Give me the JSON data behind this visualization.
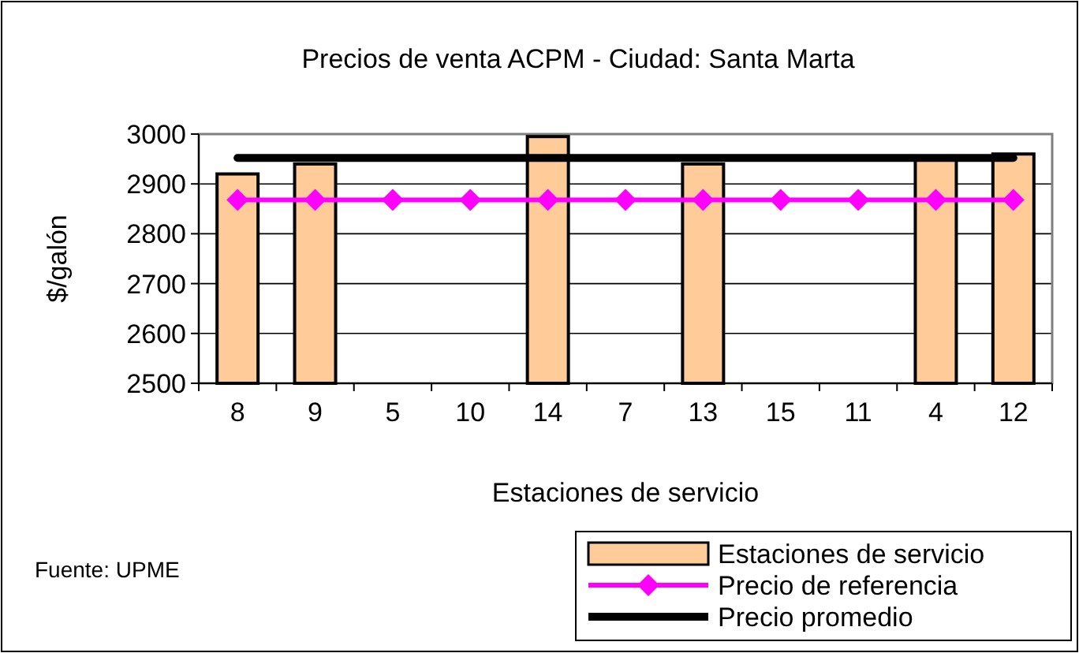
{
  "chart_data": {
    "type": "bar",
    "title": "Precios de venta ACPM - Ciudad: Santa Marta",
    "xlabel": "Estaciones de servicio",
    "ylabel": "$/galón",
    "categories": [
      "8",
      "9",
      "5",
      "10",
      "14",
      "7",
      "13",
      "15",
      "11",
      "4",
      "12"
    ],
    "series": [
      {
        "name": "Estaciones de servicio",
        "color": "#ffcc99",
        "values": [
          2920,
          2940,
          null,
          null,
          2995,
          null,
          2940,
          null,
          null,
          2955,
          2960
        ]
      },
      {
        "name": "Precio de referencia",
        "type": "line",
        "color": "#ff00ff",
        "marker": "diamond",
        "values": [
          2868,
          2868,
          2868,
          2868,
          2868,
          2868,
          2868,
          2868,
          2868,
          2868,
          2868
        ]
      },
      {
        "name": "Precio promedio",
        "type": "line",
        "color": "#000000",
        "marker": "none",
        "values": [
          2952,
          2952,
          2952,
          2952,
          2952,
          2952,
          2952,
          2952,
          2952,
          2952,
          2952
        ]
      }
    ],
    "ylim": [
      2500,
      3000
    ],
    "yticks": [
      2500,
      2600,
      2700,
      2800,
      2900,
      3000
    ],
    "grid": "y",
    "legend": "bottom right",
    "annotations": [
      "Fuente: UPME"
    ]
  }
}
